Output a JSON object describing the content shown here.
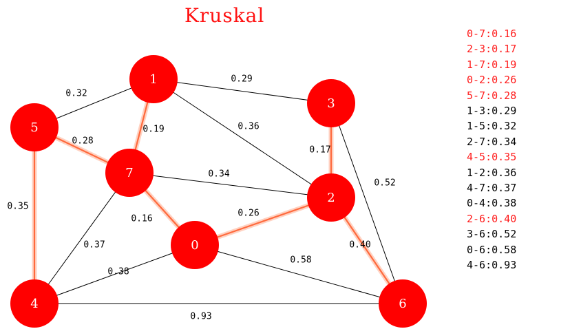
{
  "title": "Kruskal",
  "colors": {
    "node_fill": "#ff0000",
    "node_text": "#ffffff",
    "mst_edge": "#ff6a3d",
    "mst_glow": "#ffd2c2",
    "normal_edge": "#000000",
    "mst_text": "#ff1a1a",
    "normal_text": "#000000",
    "title_color": "#ff1010"
  },
  "nodes": [
    {
      "id": "0",
      "label": "0"
    },
    {
      "id": "1",
      "label": "1"
    },
    {
      "id": "2",
      "label": "2"
    },
    {
      "id": "3",
      "label": "3"
    },
    {
      "id": "4",
      "label": "4"
    },
    {
      "id": "5",
      "label": "5"
    },
    {
      "id": "6",
      "label": "6"
    },
    {
      "id": "7",
      "label": "7"
    }
  ],
  "edges": [
    {
      "from": "0",
      "to": "7",
      "weight": "0.16",
      "in_mst": true
    },
    {
      "from": "2",
      "to": "3",
      "weight": "0.17",
      "in_mst": true
    },
    {
      "from": "1",
      "to": "7",
      "weight": "0.19",
      "in_mst": true
    },
    {
      "from": "0",
      "to": "2",
      "weight": "0.26",
      "in_mst": true
    },
    {
      "from": "5",
      "to": "7",
      "weight": "0.28",
      "in_mst": true
    },
    {
      "from": "1",
      "to": "3",
      "weight": "0.29",
      "in_mst": false
    },
    {
      "from": "1",
      "to": "5",
      "weight": "0.32",
      "in_mst": false
    },
    {
      "from": "2",
      "to": "7",
      "weight": "0.34",
      "in_mst": false
    },
    {
      "from": "4",
      "to": "5",
      "weight": "0.35",
      "in_mst": true
    },
    {
      "from": "1",
      "to": "2",
      "weight": "0.36",
      "in_mst": false
    },
    {
      "from": "4",
      "to": "7",
      "weight": "0.37",
      "in_mst": false
    },
    {
      "from": "0",
      "to": "4",
      "weight": "0.38",
      "in_mst": false
    },
    {
      "from": "2",
      "to": "6",
      "weight": "0.40",
      "in_mst": true
    },
    {
      "from": "3",
      "to": "6",
      "weight": "0.52",
      "in_mst": false
    },
    {
      "from": "0",
      "to": "6",
      "weight": "0.58",
      "in_mst": false
    },
    {
      "from": "4",
      "to": "6",
      "weight": "0.93",
      "in_mst": false
    }
  ],
  "edge_list": [
    {
      "text": "0-7:0.16",
      "in_mst": true
    },
    {
      "text": "2-3:0.17",
      "in_mst": true
    },
    {
      "text": "1-7:0.19",
      "in_mst": true
    },
    {
      "text": "0-2:0.26",
      "in_mst": true
    },
    {
      "text": "5-7:0.28",
      "in_mst": true
    },
    {
      "text": "1-3:0.29",
      "in_mst": false
    },
    {
      "text": "1-5:0.32",
      "in_mst": false
    },
    {
      "text": "2-7:0.34",
      "in_mst": false
    },
    {
      "text": "4-5:0.35",
      "in_mst": true
    },
    {
      "text": "1-2:0.36",
      "in_mst": false
    },
    {
      "text": "4-7:0.37",
      "in_mst": false
    },
    {
      "text": "0-4:0.38",
      "in_mst": false
    },
    {
      "text": "2-6:0.40",
      "in_mst": true
    },
    {
      "text": "3-6:0.52",
      "in_mst": false
    },
    {
      "text": "0-6:0.58",
      "in_mst": false
    },
    {
      "text": "4-6:0.93",
      "in_mst": false
    }
  ]
}
